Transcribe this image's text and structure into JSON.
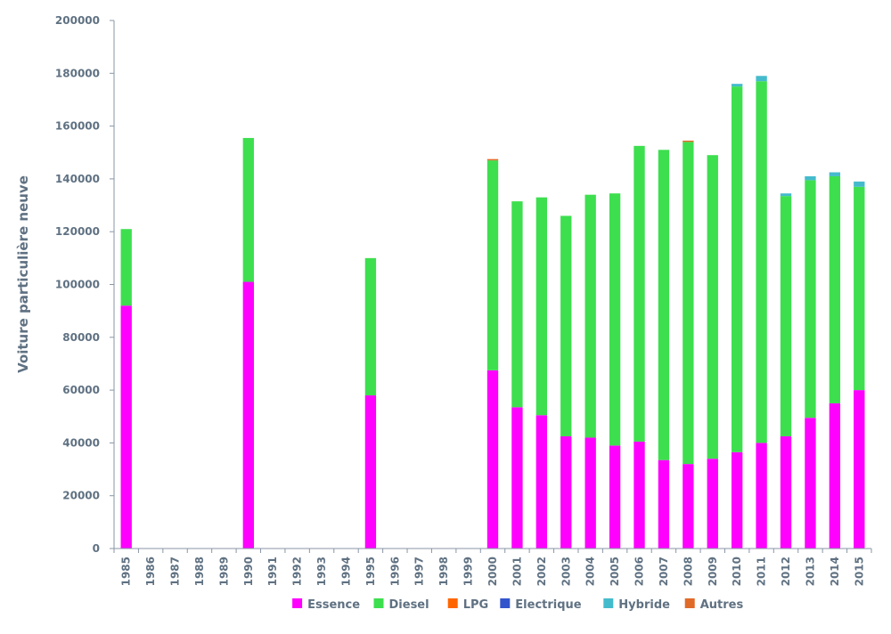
{
  "chart_data": {
    "type": "bar",
    "stacked": true,
    "title": "",
    "xlabel": "",
    "ylabel": "Voiture particulière neuve",
    "ylim": [
      0,
      200000
    ],
    "yticks": [
      0,
      20000,
      40000,
      60000,
      80000,
      100000,
      120000,
      140000,
      160000,
      180000,
      200000
    ],
    "grid": false,
    "legend_position": "bottom",
    "categories": [
      "1985",
      "1986",
      "1987",
      "1988",
      "1989",
      "1990",
      "1991",
      "1992",
      "1993",
      "1994",
      "1995",
      "1996",
      "1997",
      "1998",
      "1999",
      "2000",
      "2001",
      "2002",
      "2003",
      "2004",
      "2005",
      "2006",
      "2007",
      "2008",
      "2009",
      "2010",
      "2011",
      "2012",
      "2013",
      "2014",
      "2015"
    ],
    "series": [
      {
        "name": "Essence",
        "color": "#ff00ff",
        "values": [
          92000,
          0,
          0,
          0,
          0,
          101000,
          0,
          0,
          0,
          0,
          58000,
          0,
          0,
          0,
          0,
          67500,
          53500,
          50500,
          42500,
          42000,
          39000,
          40500,
          33500,
          32000,
          34000,
          36500,
          40000,
          42500,
          49500,
          55000,
          60000
        ]
      },
      {
        "name": "Diesel",
        "color": "#3ddf4f",
        "values": [
          29000,
          0,
          0,
          0,
          0,
          54500,
          0,
          0,
          0,
          0,
          52000,
          0,
          0,
          0,
          0,
          79500,
          78000,
          82500,
          83500,
          92000,
          95500,
          112000,
          117500,
          122000,
          115000,
          138500,
          137000,
          91000,
          90000,
          86000,
          77000
        ]
      },
      {
        "name": "LPG",
        "color": "#ff6600",
        "values": [
          0,
          0,
          0,
          0,
          0,
          0,
          0,
          0,
          0,
          0,
          0,
          0,
          0,
          0,
          0,
          0,
          0,
          0,
          0,
          0,
          0,
          0,
          0,
          0,
          0,
          0,
          0,
          0,
          0,
          0,
          0
        ]
      },
      {
        "name": "Electrique",
        "color": "#3355cc",
        "values": [
          0,
          0,
          0,
          0,
          0,
          0,
          0,
          0,
          0,
          0,
          0,
          0,
          0,
          0,
          0,
          0,
          0,
          0,
          0,
          0,
          0,
          0,
          0,
          0,
          0,
          0,
          0,
          0,
          0,
          0,
          0
        ]
      },
      {
        "name": "Hybride",
        "color": "#44bbcc",
        "values": [
          0,
          0,
          0,
          0,
          0,
          0,
          0,
          0,
          0,
          0,
          0,
          0,
          0,
          0,
          0,
          0,
          0,
          0,
          0,
          0,
          0,
          0,
          0,
          0,
          0,
          1000,
          2000,
          1000,
          1500,
          1500,
          2000
        ]
      },
      {
        "name": "Autres",
        "color": "#e06a28",
        "values": [
          0,
          0,
          0,
          0,
          0,
          0,
          0,
          0,
          0,
          0,
          0,
          0,
          0,
          0,
          0,
          500,
          0,
          0,
          0,
          0,
          0,
          0,
          0,
          500,
          0,
          0,
          0,
          0,
          0,
          0,
          0
        ]
      }
    ]
  }
}
